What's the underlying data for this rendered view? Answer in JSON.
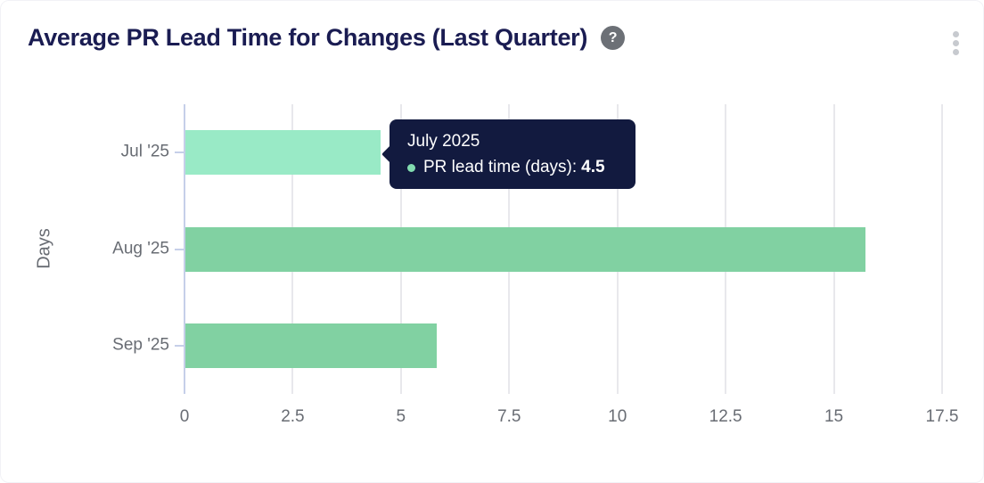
{
  "header": {
    "title": "Average PR Lead Time for Changes (Last Quarter)",
    "help_glyph": "?",
    "icons": {
      "help": "question-mark-circle-icon",
      "menu": "kebab-vertical-icon"
    }
  },
  "chart_data": {
    "type": "bar",
    "orientation": "horizontal",
    "title": "Average PR Lead Time for Changes (Last Quarter)",
    "categories": [
      "Jul '25",
      "Aug '25",
      "Sep '25"
    ],
    "values": [
      4.5,
      15.7,
      5.8
    ],
    "series_name": "PR lead time (days)",
    "xlabel": "",
    "ylabel": "Days",
    "xlim": [
      0,
      17.5
    ],
    "x_ticks": [
      0,
      2.5,
      5,
      7.5,
      10,
      12.5,
      15,
      17.5
    ],
    "grid": true,
    "highlight_index": 0,
    "colors": {
      "bar": "#81d1a2",
      "bar_highlight": "#99eac6",
      "axis": "#c6cfe9",
      "gridline": "#e8e8ec",
      "tick_label": "#686c73",
      "title": "#1a1c52"
    }
  },
  "tooltip": {
    "title": "July 2025",
    "series_label": "PR lead time (days):",
    "value": "4.5",
    "bg": "#121a3f",
    "dot_color": "#82dcb0"
  }
}
